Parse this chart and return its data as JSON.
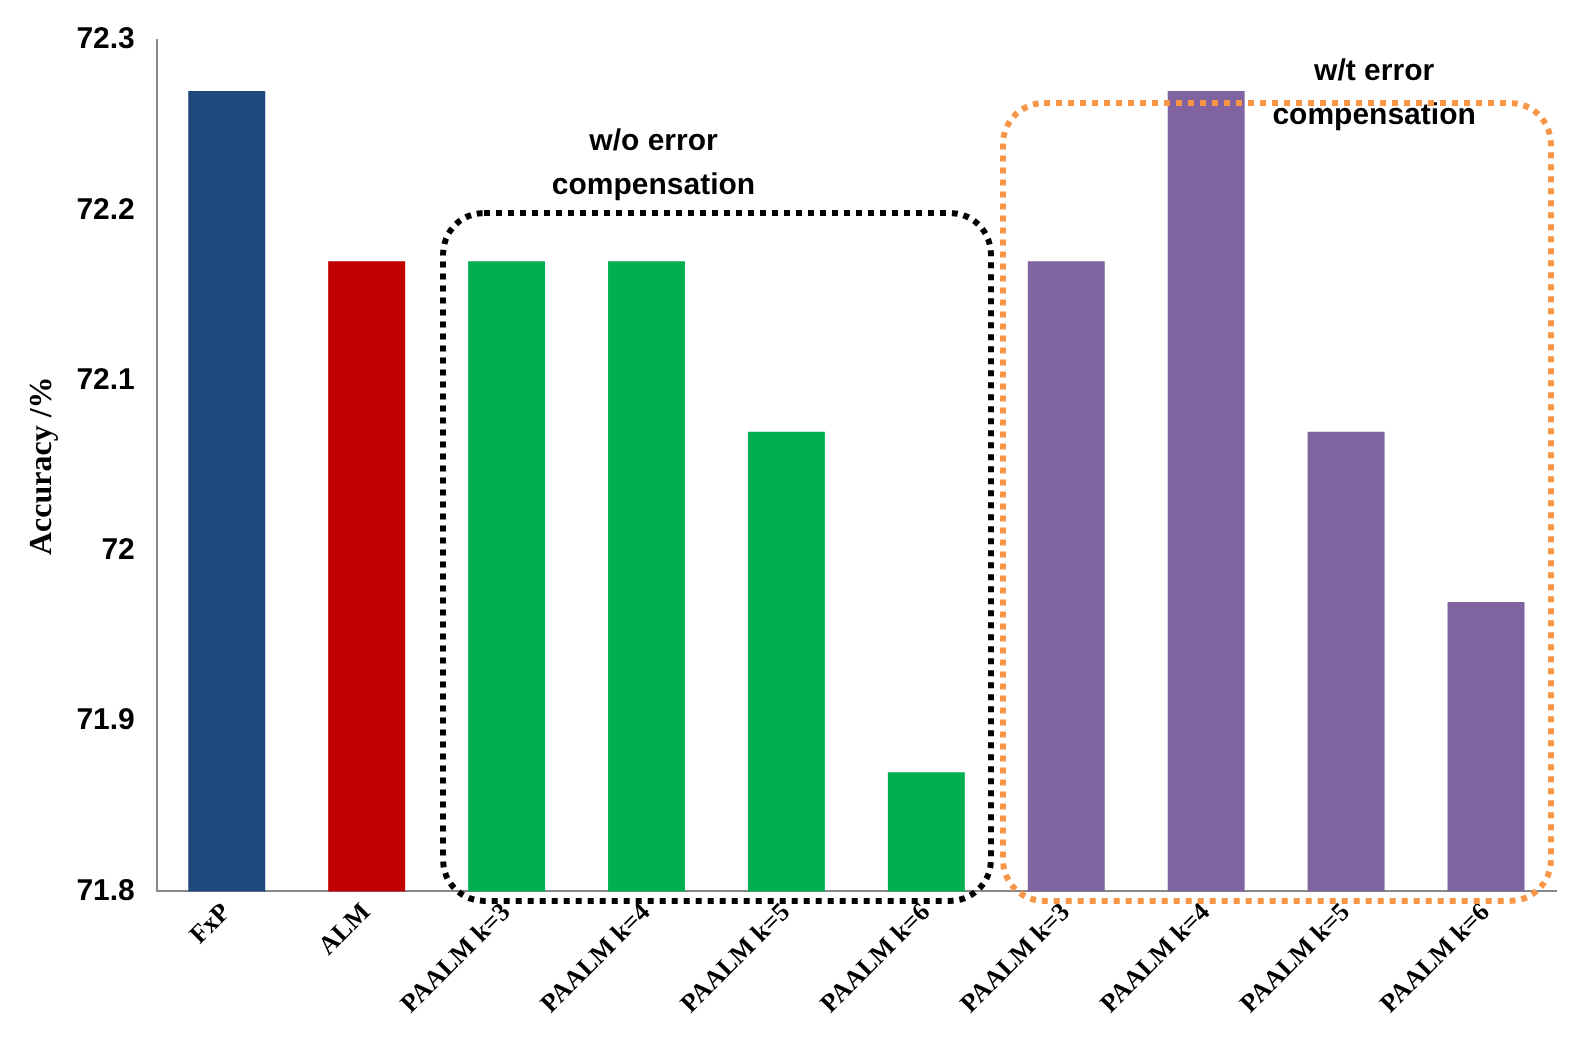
{
  "chart_data": {
    "type": "bar",
    "ylabel": "Accuracy /%",
    "categories": [
      "FxP",
      "ALM",
      "PAALM k=3",
      "PAALM k=4",
      "PAALM k=5",
      "PAALM k=6",
      "PAALM k=3",
      "PAALM k=4",
      "PAALM k=5",
      "PAALM k=6"
    ],
    "values": [
      72.27,
      72.17,
      72.17,
      72.17,
      72.07,
      71.87,
      72.17,
      72.27,
      72.07,
      71.97
    ],
    "colors": [
      "#1f497d",
      "#c00000",
      "#00b050",
      "#00b050",
      "#00b050",
      "#00b050",
      "#8064a2",
      "#8064a2",
      "#8064a2",
      "#8064a2"
    ],
    "ylim": [
      71.8,
      72.3
    ],
    "yticks": [
      71.8,
      71.9,
      72,
      72.1,
      72.2,
      72.3
    ],
    "grid": false,
    "legend": false,
    "annotations": [
      "w/o error\ncompensation",
      "w/t error\ncompensation"
    ]
  }
}
